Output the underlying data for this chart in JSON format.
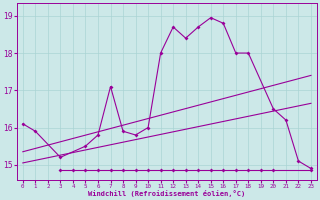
{
  "xlabel": "Windchill (Refroidissement éolien,°C)",
  "x": [
    0,
    1,
    2,
    3,
    4,
    5,
    6,
    7,
    8,
    9,
    10,
    11,
    12,
    13,
    14,
    15,
    16,
    17,
    18,
    19,
    20,
    21,
    22,
    23
  ],
  "line1_y": [
    16.1,
    15.9,
    15.2,
    15.5,
    15.8,
    17.1,
    15.9,
    15.8,
    16.0,
    18.0,
    18.7,
    18.4,
    18.7,
    18.95,
    18.8,
    18.0,
    18.0,
    16.5,
    16.2,
    15.1,
    14.9
  ],
  "line1_x": [
    0,
    1,
    3,
    5,
    6,
    7,
    8,
    9,
    10,
    11,
    12,
    13,
    14,
    15,
    16,
    17,
    18,
    20,
    21,
    22,
    23
  ],
  "line2_x": [
    3,
    4,
    5,
    6,
    7,
    8,
    9,
    10,
    11,
    12,
    13,
    14,
    15,
    16,
    17,
    18,
    19,
    20,
    23
  ],
  "line2_y": [
    14.85,
    14.85,
    14.85,
    14.85,
    14.85,
    14.85,
    14.85,
    14.85,
    14.85,
    14.85,
    14.85,
    14.85,
    14.85,
    14.85,
    14.85,
    14.85,
    14.85,
    14.85,
    14.85
  ],
  "line3_x": [
    0,
    23
  ],
  "line3_y": [
    15.35,
    17.4
  ],
  "line4_x": [
    0,
    23
  ],
  "line4_y": [
    15.05,
    16.65
  ],
  "bg_color": "#cce8e8",
  "line_color": "#990099",
  "grid_color": "#aad4d4",
  "ylim": [
    14.6,
    19.35
  ],
  "xlim": [
    -0.5,
    23.5
  ],
  "yticks": [
    15,
    16,
    17,
    18,
    19
  ],
  "xticks": [
    0,
    1,
    2,
    3,
    4,
    5,
    6,
    7,
    8,
    9,
    10,
    11,
    12,
    13,
    14,
    15,
    16,
    17,
    18,
    19,
    20,
    21,
    22,
    23
  ]
}
